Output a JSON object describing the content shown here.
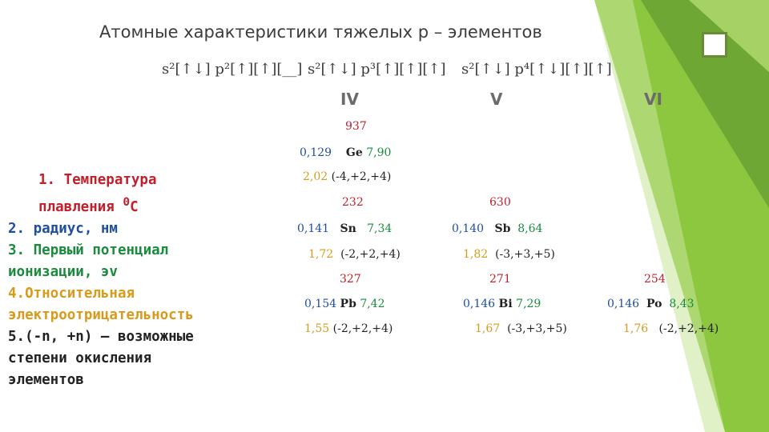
{
  "title": "Атомные характеристики тяжелых р – элементов",
  "configs": [
    {
      "text": "s²[↑↓] p²[↑][↑][__]"
    },
    {
      "text": "s²[↑↓] p³[↑][↑][↑]"
    },
    {
      "text": "s²[↑↓] p⁴[↑↓][↑][↑]"
    }
  ],
  "groups": [
    "IV",
    "V",
    "VI"
  ],
  "elements": {
    "ge": {
      "melting": "937",
      "radius": "0,129",
      "symbol": "Ge",
      "ionization": "7,90",
      "electronegativity": "2,02",
      "oxidation": "(-4,+2,+4)"
    },
    "sn": {
      "melting": "232",
      "radius": "0,141",
      "symbol": "Sn",
      "ionization": "7,34",
      "electronegativity": "1,72",
      "oxidation": "(-2,+2,+4)"
    },
    "sb": {
      "melting": "630",
      "radius": "0,140",
      "symbol": "Sb",
      "ionization": "8,64",
      "electronegativity": "1,82",
      "oxidation": "(-3,+3,+5)"
    },
    "pb": {
      "melting": "327",
      "radius": "0,154",
      "symbol": "Pb",
      "ionization": "7,42",
      "electronegativity": "1,55",
      "oxidation": "(-2,+2,+4)"
    },
    "bi": {
      "melting": "271",
      "radius": "0,146",
      "symbol": "Bi",
      "ionization": "7,29",
      "electronegativity": "1,67",
      "oxidation": "(-3,+3,+5)"
    },
    "po": {
      "melting": "254",
      "radius": "0,146",
      "symbol": "Po",
      "ionization": "8,43",
      "electronegativity": "1,76",
      "oxidation": "(-2,+2,+4)"
    }
  },
  "legend": {
    "l1a": "1. Температура",
    "l1b": "плавления",
    "l1sup": "0",
    "l1c": "С",
    "l2": "2. радиус, нм",
    "l3a": "3. Первый потенциал",
    "l3b": "ионизации, эv",
    "l4a": "4.Относительная",
    "l4b": "электроотрицательность",
    "l5a": "5.(-n, +n) – возможные",
    "l5b": "степени окисления",
    "l5c": "элементов"
  },
  "colors": {
    "melting": "#c0202b",
    "radius": "#1f4fa0",
    "ionization": "#1a8a3c",
    "electronegativity": "#d89a1a",
    "accent": "#8dc63f"
  }
}
